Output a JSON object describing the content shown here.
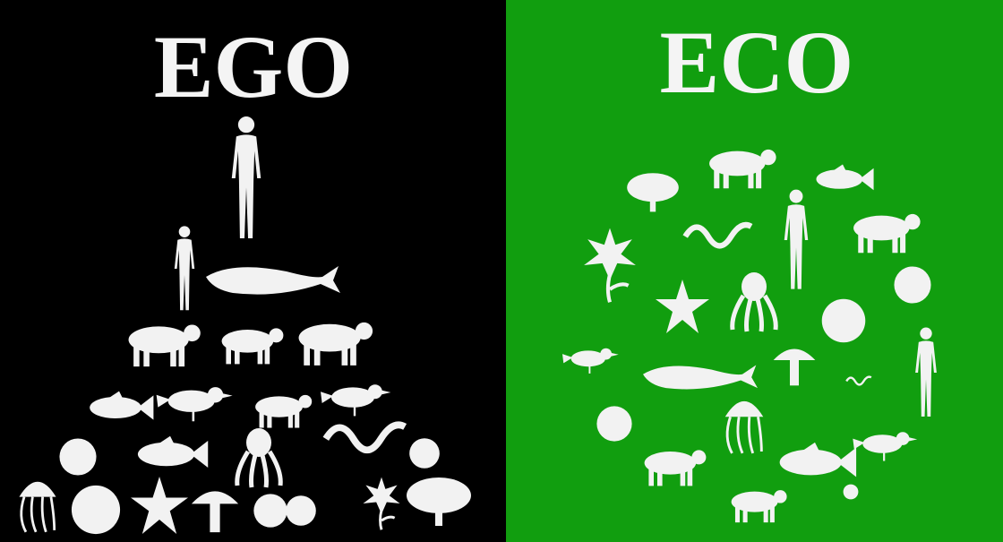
{
  "panels": [
    {
      "title": "EGO"
    },
    {
      "title": "ECO"
    }
  ]
}
